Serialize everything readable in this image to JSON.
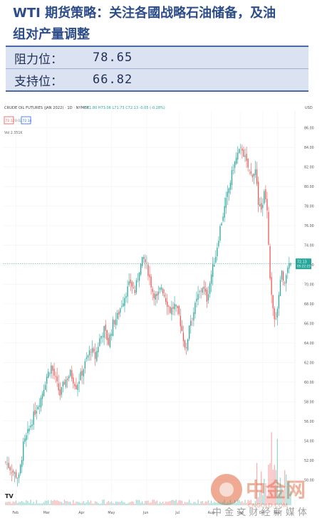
{
  "header": {
    "title_line1": "WTI 期货策略：关注各國战略石油储备，及油",
    "title_line2": "组对产量调整",
    "rows": [
      {
        "label": "阻力位：",
        "value": "78.65"
      },
      {
        "label": "支持位：",
        "value": "66.82"
      }
    ]
  },
  "chart_header": {
    "symbol": "CRUDE OIL FUTURES (JAN 2022) · 1D · NYMEX",
    "ohlc": "O71.80 H73.06 L71.73 C72.13 -0.05 (-0.28%)",
    "price_box_sell": "72.12",
    "price_box_mid": "0.02",
    "price_box_buy": "72.14",
    "volume_label": "Vol 2.351K",
    "currency": "USD",
    "last_price": "72.13",
    "countdown": "05:22:23"
  },
  "watermark": {
    "brand": "中金网",
    "domain": "CNGOLD.COM",
    "tagline": "中 金 文  财 经  新  媒  体"
  },
  "colors": {
    "up": "#26a69a",
    "down": "#ef5350",
    "price_line": "#26a69a",
    "header_text": "#2c4d8a",
    "header_bg": "#dbe3f3",
    "watermark": "#e0653a"
  },
  "chart_data": {
    "type": "candlestick",
    "title": "CRUDE OIL FUTURES (JAN 2022) · 1D · NYMEX",
    "x_ticks": [
      "Feb",
      "Mar",
      "Apr",
      "May",
      "Jun",
      "Jul",
      "Aug",
      "Sep",
      "Oct",
      "Nov"
    ],
    "y_ticks": [
      50,
      52,
      54,
      56,
      58,
      60,
      62,
      64,
      66,
      68,
      70,
      72,
      74,
      76,
      78,
      80,
      82,
      84,
      86
    ],
    "ylim": [
      49,
      87
    ],
    "grid": true,
    "last_price": 72.13,
    "close_path": [
      [
        0,
        51.8
      ],
      [
        3,
        51.2
      ],
      [
        6,
        50.6
      ],
      [
        9,
        50.2
      ],
      [
        12,
        53.5
      ],
      [
        16,
        55.2
      ],
      [
        20,
        57.0
      ],
      [
        24,
        58.4
      ],
      [
        28,
        60.6
      ],
      [
        31,
        61.6
      ],
      [
        34,
        60.2
      ],
      [
        37,
        58.7
      ],
      [
        40,
        60.0
      ],
      [
        44,
        60.9
      ],
      [
        48,
        59.6
      ],
      [
        52,
        61.0
      ],
      [
        55,
        62.3
      ],
      [
        58,
        63.4
      ],
      [
        61,
        62.5
      ],
      [
        64,
        64.4
      ],
      [
        67,
        65.4
      ],
      [
        70,
        64.0
      ],
      [
        73,
        66.0
      ],
      [
        76,
        66.7
      ],
      [
        79,
        68.0
      ],
      [
        82,
        69.2
      ],
      [
        85,
        70.2
      ],
      [
        88,
        69.2
      ],
      [
        91,
        71.6
      ],
      [
        94,
        72.7
      ],
      [
        97,
        71.3
      ],
      [
        100,
        69.3
      ],
      [
        103,
        68.5
      ],
      [
        106,
        69.8
      ],
      [
        109,
        68.5
      ],
      [
        112,
        67.3
      ],
      [
        115,
        67.8
      ],
      [
        118,
        66.8
      ],
      [
        121,
        64.5
      ],
      [
        123,
        63.1
      ],
      [
        125,
        66.0
      ],
      [
        128,
        67.2
      ],
      [
        131,
        68.8
      ],
      [
        134,
        69.8
      ],
      [
        137,
        68.5
      ],
      [
        140,
        71.0
      ],
      [
        143,
        73.0
      ],
      [
        146,
        75.8
      ],
      [
        149,
        77.8
      ],
      [
        152,
        79.8
      ],
      [
        155,
        82.0
      ],
      [
        158,
        83.3
      ],
      [
        161,
        83.9
      ],
      [
        164,
        82.3
      ],
      [
        167,
        81.2
      ],
      [
        170,
        81.6
      ],
      [
        172,
        78.2
      ],
      [
        174,
        77.4
      ],
      [
        176,
        79.3
      ],
      [
        178,
        78.0
      ],
      [
        180,
        70.2
      ],
      [
        182,
        67.1
      ],
      [
        184,
        66.2
      ],
      [
        186,
        69.0
      ],
      [
        188,
        71.2
      ],
      [
        190,
        70.4
      ],
      [
        192,
        71.4
      ],
      [
        194,
        72.13
      ]
    ],
    "volume_note": "volume histogram at bottom"
  }
}
